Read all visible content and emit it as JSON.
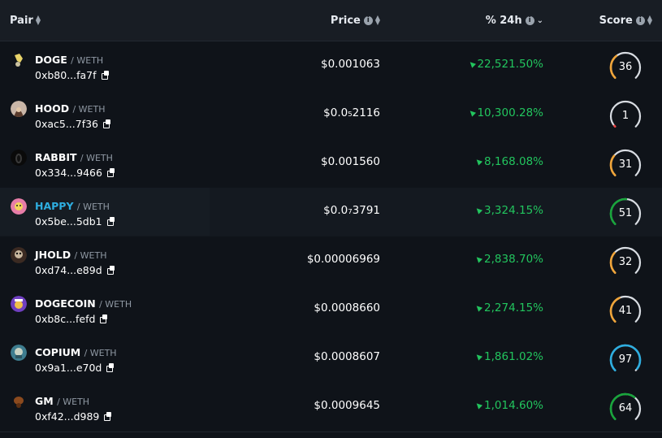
{
  "header": {
    "pair": "Pair",
    "price": "Price",
    "change": "% 24h",
    "score": "Score"
  },
  "colors": {
    "green": "#22c55e",
    "orange": "#f0a53a",
    "red": "#ef4444",
    "dark_green": "#19a53c",
    "cyan": "#2eaee0",
    "track": "#d9dde3"
  },
  "rows": [
    {
      "symbol": "DOGE",
      "quote": "/ WETH",
      "address": "0xb80...fa7f",
      "price": "$0.001063",
      "change": "22,521.50%",
      "score": "36",
      "score_value": 36,
      "gauge_color": "orange",
      "avatar_icon": "doge-avatar-icon"
    },
    {
      "symbol": "HOOD",
      "quote": "/ WETH",
      "address": "0xac5...7f36",
      "price": "$0.0₅2116",
      "change": "10,300.28%",
      "score": "1",
      "score_value": 1,
      "gauge_color": "red",
      "avatar_icon": "hood-avatar-icon"
    },
    {
      "symbol": "RABBIT",
      "quote": "/ WETH",
      "address": "0x334...9466",
      "price": "$0.001560",
      "change": "8,168.08%",
      "score": "31",
      "score_value": 31,
      "gauge_color": "orange",
      "avatar_icon": "rabbit-avatar-icon"
    },
    {
      "symbol": "HAPPY",
      "quote": "/ WETH",
      "address": "0x5be...5db1",
      "price": "$0.0₇3791",
      "change": "3,324.15%",
      "score": "51",
      "score_value": 51,
      "gauge_color": "dark_green",
      "avatar_icon": "happy-avatar-icon"
    },
    {
      "symbol": "JHOLD",
      "quote": "/ WETH",
      "address": "0xd74...e89d",
      "price": "$0.00006969",
      "change": "2,838.70%",
      "score": "32",
      "score_value": 32,
      "gauge_color": "orange",
      "avatar_icon": "jhold-avatar-icon"
    },
    {
      "symbol": "DOGECOIN",
      "quote": "/ WETH",
      "address": "0xb8c...fefd",
      "price": "$0.0008660",
      "change": "2,274.15%",
      "score": "41",
      "score_value": 41,
      "gauge_color": "orange",
      "avatar_icon": "dogecoin-avatar-icon"
    },
    {
      "symbol": "COPIUM",
      "quote": "/ WETH",
      "address": "0x9a1...e70d",
      "price": "$0.0008607",
      "change": "1,861.02%",
      "score": "97",
      "score_value": 97,
      "gauge_color": "cyan",
      "avatar_icon": "copium-avatar-icon"
    },
    {
      "symbol": "GM",
      "quote": "/ WETH",
      "address": "0xf42...d989",
      "price": "$0.0009645",
      "change": "1,014.60%",
      "score": "64",
      "score_value": 64,
      "gauge_color": "dark_green",
      "avatar_icon": "gm-avatar-icon"
    }
  ]
}
